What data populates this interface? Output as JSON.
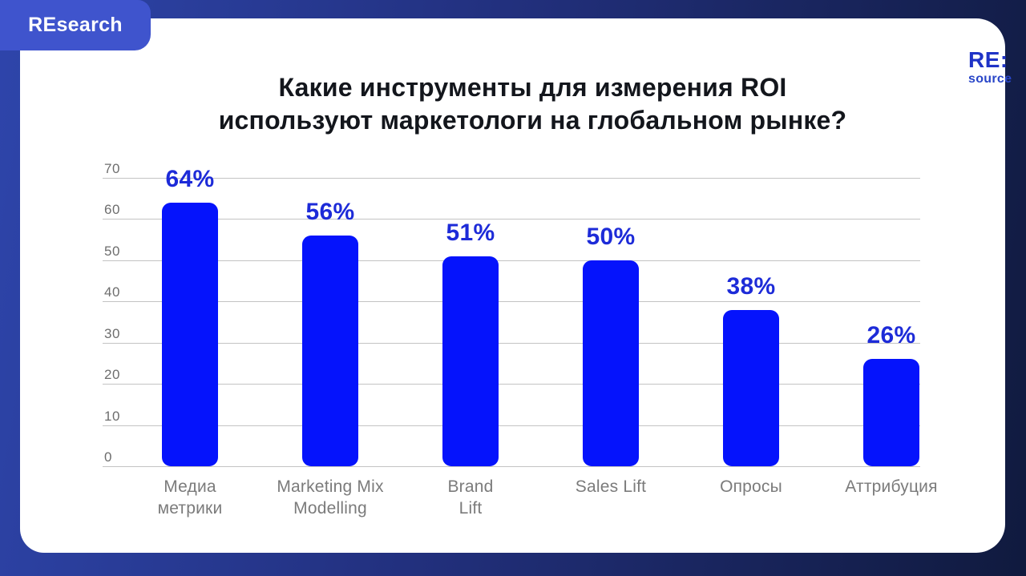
{
  "badge": {
    "label": "REsearch"
  },
  "logo": {
    "primary": "RE:",
    "secondary": "source"
  },
  "title": {
    "line1": "Какие инструменты для измерения ROI",
    "line2": "используют маркетологи на глобальном рынке?"
  },
  "chart_data": {
    "type": "bar",
    "title": "Какие инструменты для измерения ROI используют маркетологи на глобальном рынке?",
    "categories": [
      "Медиа\nметрики",
      "Marketing Mix\nModelling",
      "Brand\nLift",
      "Sales Lift",
      "Опросы",
      "Аттрибуция"
    ],
    "values": [
      64,
      56,
      51,
      50,
      38,
      26
    ],
    "value_labels": [
      "64%",
      "56%",
      "51%",
      "50%",
      "38%",
      "26%"
    ],
    "unit": "%",
    "ylim": [
      0,
      70
    ],
    "yticks": [
      0,
      10,
      20,
      30,
      40,
      50,
      60,
      70
    ],
    "grid": true,
    "legend": false,
    "bar_color": "#0513fc",
    "value_label_color": "#1d2bd8",
    "category_label_color": "#7b7b7b",
    "tick_label_color": "#6d6d6d",
    "gridline_color": "#c3c3c3"
  }
}
